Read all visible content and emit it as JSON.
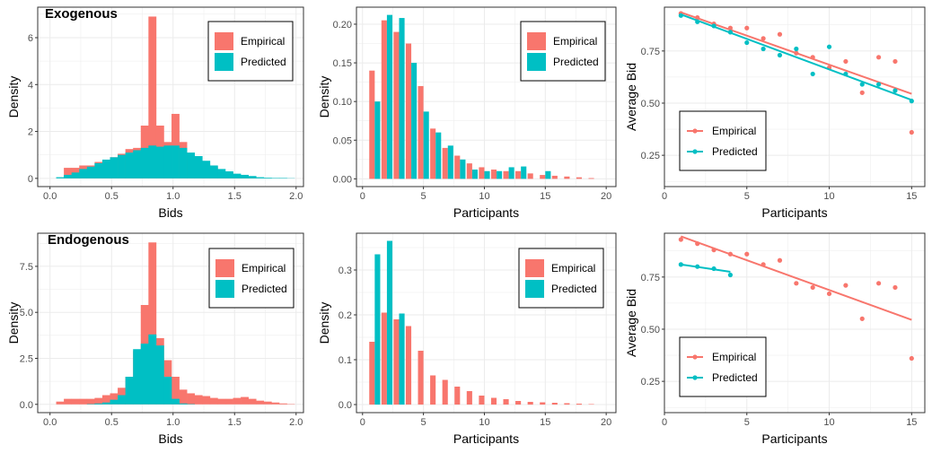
{
  "colors": {
    "empirical": "#F8766D",
    "predicted": "#00BFC4",
    "grid": "#EBEBEB",
    "axis": "#4D4D4D"
  },
  "chart_data": [
    {
      "id": "exo-hist",
      "type": "bar",
      "variant": "histogram",
      "title": "Exogenous",
      "xlabel": "Bids",
      "ylabel": "Density",
      "xlim": [
        -0.1,
        2.06
      ],
      "ylim": [
        -0.35,
        7.3
      ],
      "xticks": [
        0.0,
        0.5,
        1.0,
        1.5,
        2.0
      ],
      "xtick_labels": [
        "0.0",
        "0.5",
        "1.0",
        "1.5",
        "2.0"
      ],
      "yticks": [
        0,
        2,
        4,
        6
      ],
      "ytick_labels": [
        "0",
        "2",
        "4",
        "6"
      ],
      "bin_width": 0.0625,
      "bin_starts": [
        0.05,
        0.1125,
        0.175,
        0.2375,
        0.3,
        0.3625,
        0.425,
        0.4875,
        0.55,
        0.6125,
        0.675,
        0.7375,
        0.8,
        0.8625,
        0.925,
        0.9875,
        1.05,
        1.1125,
        1.175,
        1.2375,
        1.3,
        1.3625,
        1.425,
        1.4875,
        1.55,
        1.6125,
        1.675,
        1.7375,
        1.8,
        1.8625,
        1.925
      ],
      "series": [
        {
          "name": "Empirical",
          "values": [
            0.0,
            0.45,
            0.45,
            0.55,
            0.55,
            0.7,
            0.75,
            0.9,
            1.05,
            1.25,
            1.3,
            2.25,
            6.9,
            2.25,
            1.55,
            2.75,
            1.55,
            1.0,
            0.75,
            0.6,
            0.5,
            0.3,
            0.25,
            0.1,
            0.05,
            0.05,
            0.0,
            0.0,
            0.0,
            0.0,
            0.0
          ]
        },
        {
          "name": "Predicted",
          "values": [
            0.05,
            0.15,
            0.25,
            0.4,
            0.5,
            0.65,
            0.8,
            0.9,
            1.0,
            1.1,
            1.2,
            1.3,
            1.4,
            1.35,
            1.4,
            1.4,
            1.3,
            1.1,
            0.95,
            0.75,
            0.55,
            0.4,
            0.3,
            0.2,
            0.15,
            0.1,
            0.05,
            0.03,
            0.02,
            0.02,
            0.01
          ]
        }
      ],
      "legend": "top-right"
    },
    {
      "id": "exo-part",
      "type": "bar",
      "variant": "dodged",
      "xlabel": "Participants",
      "ylabel": "Density",
      "xlim": [
        -0.5,
        20.8
      ],
      "ylim": [
        -0.01,
        0.222
      ],
      "xticks": [
        0,
        5,
        10,
        15,
        20
      ],
      "xtick_labels": [
        "0",
        "5",
        "10",
        "15",
        "20"
      ],
      "yticks": [
        0.0,
        0.05,
        0.1,
        0.15,
        0.2
      ],
      "ytick_labels": [
        "0.00",
        "0.05",
        "0.10",
        "0.15",
        "0.20"
      ],
      "categories": [
        1,
        2,
        3,
        4,
        5,
        6,
        7,
        8,
        9,
        10,
        11,
        12,
        13,
        14,
        15,
        16,
        17,
        18,
        19
      ],
      "series": [
        {
          "name": "Empirical",
          "values": [
            0.14,
            0.205,
            0.19,
            0.175,
            0.12,
            0.065,
            0.04,
            0.03,
            0.02,
            0.015,
            0.012,
            0.01,
            0.01,
            0.007,
            0.005,
            0.004,
            0.003,
            0.002,
            0.001
          ]
        },
        {
          "name": "Predicted",
          "values": [
            0.1,
            0.212,
            0.208,
            0.15,
            0.087,
            0.06,
            0.043,
            0.025,
            0.012,
            0.01,
            0.01,
            0.015,
            0.016,
            0.0,
            0.01,
            0.0,
            0.0,
            0.0,
            0.0
          ]
        }
      ],
      "legend": "top-right"
    },
    {
      "id": "exo-avg",
      "type": "scatter",
      "variant": "points-with-trend",
      "xlabel": "Participants",
      "ylabel": "Average Bid",
      "xlim": [
        0,
        15.8
      ],
      "ylim": [
        0.1,
        0.96
      ],
      "xticks": [
        0,
        5,
        10,
        15
      ],
      "xtick_labels": [
        "0",
        "5",
        "10",
        "15"
      ],
      "yticks": [
        0.25,
        0.5,
        0.75
      ],
      "ytick_labels": [
        "0.25",
        "0.50",
        "0.75"
      ],
      "series": [
        {
          "name": "Empirical",
          "x": [
            1,
            2,
            3,
            4,
            5,
            6,
            7,
            8,
            9,
            10,
            11,
            12,
            13,
            14,
            15
          ],
          "y": [
            0.93,
            0.91,
            0.88,
            0.86,
            0.86,
            0.81,
            0.83,
            0.74,
            0.72,
            0.67,
            0.7,
            0.55,
            0.72,
            0.7,
            0.36
          ],
          "trend": [
            [
              1,
              0.935
            ],
            [
              15,
              0.545
            ]
          ]
        },
        {
          "name": "Predicted",
          "x": [
            1,
            2,
            3,
            4,
            5,
            6,
            7,
            8,
            9,
            10,
            11,
            12,
            13,
            14,
            15
          ],
          "y": [
            0.92,
            0.89,
            0.87,
            0.84,
            0.79,
            0.76,
            0.73,
            0.76,
            0.64,
            0.77,
            0.64,
            0.59,
            0.59,
            0.56,
            0.51
          ],
          "trend": [
            [
              1,
              0.925
            ],
            [
              15,
              0.515
            ]
          ]
        }
      ],
      "legend": "bottom-left"
    },
    {
      "id": "endo-hist",
      "type": "bar",
      "variant": "histogram",
      "title": "Endogenous",
      "xlabel": "Bids",
      "ylabel": "Density",
      "xlim": [
        -0.1,
        2.06
      ],
      "ylim": [
        -0.45,
        9.3
      ],
      "xticks": [
        0.0,
        0.5,
        1.0,
        1.5,
        2.0
      ],
      "xtick_labels": [
        "0.0",
        "0.5",
        "1.0",
        "1.5",
        "2.0"
      ],
      "yticks": [
        0,
        2.5,
        5,
        7.5
      ],
      "ytick_labels": [
        "0.0",
        "2.5",
        "5.0",
        "7.5"
      ],
      "bin_width": 0.0625,
      "bin_starts": [
        0.05,
        0.1125,
        0.175,
        0.2375,
        0.3,
        0.3625,
        0.425,
        0.4875,
        0.55,
        0.6125,
        0.675,
        0.7375,
        0.8,
        0.8625,
        0.925,
        0.9875,
        1.05,
        1.1125,
        1.175,
        1.2375,
        1.3,
        1.3625,
        1.425,
        1.4875,
        1.55,
        1.6125,
        1.675,
        1.7375,
        1.8,
        1.8625,
        1.925
      ],
      "series": [
        {
          "name": "Empirical",
          "values": [
            0.15,
            0.3,
            0.3,
            0.3,
            0.3,
            0.35,
            0.5,
            0.6,
            0.9,
            1.5,
            2.9,
            5.4,
            8.8,
            3.6,
            2.4,
            1.5,
            0.8,
            0.6,
            0.5,
            0.45,
            0.35,
            0.3,
            0.3,
            0.35,
            0.4,
            0.3,
            0.2,
            0.15,
            0.1,
            0.05,
            0.02
          ]
        },
        {
          "name": "Predicted",
          "values": [
            0.0,
            0.0,
            0.0,
            0.0,
            0.02,
            0.05,
            0.1,
            0.25,
            0.5,
            1.5,
            3.0,
            3.3,
            3.8,
            3.2,
            1.5,
            0.3,
            0.05,
            0.02,
            0.0,
            0.0,
            0.0,
            0.0,
            0.0,
            0.0,
            0.0,
            0.0,
            0.0,
            0.0,
            0.0,
            0.0,
            0.0
          ]
        }
      ],
      "legend": "top-right"
    },
    {
      "id": "endo-part",
      "type": "bar",
      "variant": "dodged",
      "xlabel": "Participants",
      "ylabel": "Density",
      "xlim": [
        -0.5,
        20.8
      ],
      "ylim": [
        -0.018,
        0.382
      ],
      "xticks": [
        0,
        5,
        10,
        15,
        20
      ],
      "xtick_labels": [
        "0",
        "5",
        "10",
        "15",
        "20"
      ],
      "yticks": [
        0.0,
        0.1,
        0.2,
        0.3
      ],
      "ytick_labels": [
        "0.0",
        "0.1",
        "0.2",
        "0.3"
      ],
      "categories": [
        1,
        2,
        3,
        4,
        5,
        6,
        7,
        8,
        9,
        10,
        11,
        12,
        13,
        14,
        15,
        16,
        17,
        18,
        19
      ],
      "series": [
        {
          "name": "Empirical",
          "values": [
            0.14,
            0.205,
            0.19,
            0.175,
            0.12,
            0.065,
            0.055,
            0.04,
            0.03,
            0.02,
            0.015,
            0.012,
            0.008,
            0.006,
            0.005,
            0.004,
            0.003,
            0.002,
            0.001
          ]
        },
        {
          "name": "Predicted",
          "values": [
            0.335,
            0.365,
            0.203,
            0.0,
            0.0,
            0.0,
            0.0,
            0.0,
            0.0,
            0.0,
            0.0,
            0.0,
            0.0,
            0.0,
            0.0,
            0.0,
            0.0,
            0.0,
            0.0
          ]
        }
      ],
      "legend": "top-right"
    },
    {
      "id": "endo-avg",
      "type": "scatter",
      "variant": "points-with-trend",
      "xlabel": "Participants",
      "ylabel": "Average Bid",
      "xlim": [
        0,
        15.8
      ],
      "ylim": [
        0.1,
        0.96
      ],
      "xticks": [
        0,
        5,
        10,
        15
      ],
      "xtick_labels": [
        "0",
        "5",
        "10",
        "15"
      ],
      "yticks": [
        0.25,
        0.5,
        0.75
      ],
      "ytick_labels": [
        "0.25",
        "0.50",
        "0.75"
      ],
      "series": [
        {
          "name": "Empirical",
          "x": [
            1,
            2,
            3,
            4,
            5,
            6,
            7,
            8,
            9,
            10,
            11,
            12,
            13,
            14,
            15
          ],
          "y": [
            0.93,
            0.91,
            0.88,
            0.86,
            0.86,
            0.81,
            0.83,
            0.72,
            0.7,
            0.67,
            0.71,
            0.55,
            0.72,
            0.7,
            0.36
          ],
          "trend": [
            [
              1,
              0.945
            ],
            [
              15,
              0.545
            ]
          ]
        },
        {
          "name": "Predicted",
          "x": [
            1,
            2,
            3,
            4
          ],
          "y": [
            0.81,
            0.8,
            0.79,
            0.76
          ],
          "trend": [
            [
              1,
              0.81
            ],
            [
              4,
              0.775
            ]
          ]
        }
      ],
      "legend": "bottom-left"
    }
  ]
}
